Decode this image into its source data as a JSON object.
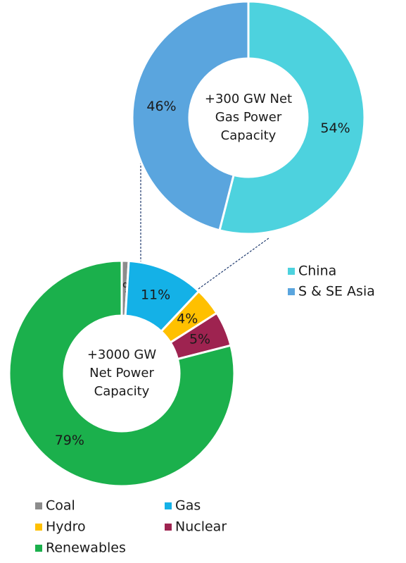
{
  "chart_data": [
    {
      "type": "donut",
      "center_label": [
        "+300 GW Net",
        "Gas Power",
        "Capacity"
      ],
      "categories": [
        "China",
        "S & SE Asia"
      ],
      "values": [
        54,
        46
      ],
      "value_labels": [
        "54%",
        "46%"
      ],
      "colors": [
        "#4dd2de",
        "#5aa5de"
      ],
      "legend": "right"
    },
    {
      "type": "donut",
      "center_label": [
        "+3000 GW",
        "Net Power",
        "Capacity"
      ],
      "categories": [
        "Coal",
        "Gas",
        "Hydro",
        "Nuclear",
        "Renewables"
      ],
      "values": [
        1,
        11,
        4,
        5,
        79
      ],
      "value_labels": [
        "1%",
        "11%",
        "4%",
        "5%",
        "79%"
      ],
      "colors": [
        "#8c8c8c",
        "#14b1e7",
        "#ffc000",
        "#9e2350",
        "#1bb04c"
      ],
      "legend": "bottom"
    }
  ]
}
